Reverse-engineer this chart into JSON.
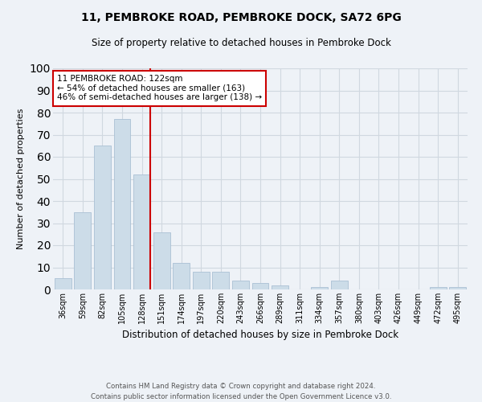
{
  "title": "11, PEMBROKE ROAD, PEMBROKE DOCK, SA72 6PG",
  "subtitle": "Size of property relative to detached houses in Pembroke Dock",
  "xlabel": "Distribution of detached houses by size in Pembroke Dock",
  "ylabel": "Number of detached properties",
  "categories": [
    "36sqm",
    "59sqm",
    "82sqm",
    "105sqm",
    "128sqm",
    "151sqm",
    "174sqm",
    "197sqm",
    "220sqm",
    "243sqm",
    "266sqm",
    "289sqm",
    "311sqm",
    "334sqm",
    "357sqm",
    "380sqm",
    "403sqm",
    "426sqm",
    "449sqm",
    "472sqm",
    "495sqm"
  ],
  "values": [
    5,
    35,
    65,
    77,
    52,
    26,
    12,
    8,
    8,
    4,
    3,
    2,
    0,
    1,
    4,
    0,
    0,
    0,
    0,
    1,
    1
  ],
  "bar_color": "#ccdce8",
  "bar_edge_color": "#aac0d4",
  "grid_color": "#d0d8e0",
  "annotation_text_line1": "11 PEMBROKE ROAD: 122sqm",
  "annotation_text_line2": "← 54% of detached houses are smaller (163)",
  "annotation_text_line3": "46% of semi-detached houses are larger (138) →",
  "annotation_box_color": "#ffffff",
  "annotation_box_edge_color": "#cc0000",
  "vline_color": "#cc0000",
  "vline_x_index": 4,
  "ylim": [
    0,
    100
  ],
  "yticks": [
    0,
    10,
    20,
    30,
    40,
    50,
    60,
    70,
    80,
    90,
    100
  ],
  "footer_line1": "Contains HM Land Registry data © Crown copyright and database right 2024.",
  "footer_line2": "Contains public sector information licensed under the Open Government Licence v3.0.",
  "bg_color": "#eef2f7",
  "title_fontsize": 10,
  "subtitle_fontsize": 8.5
}
